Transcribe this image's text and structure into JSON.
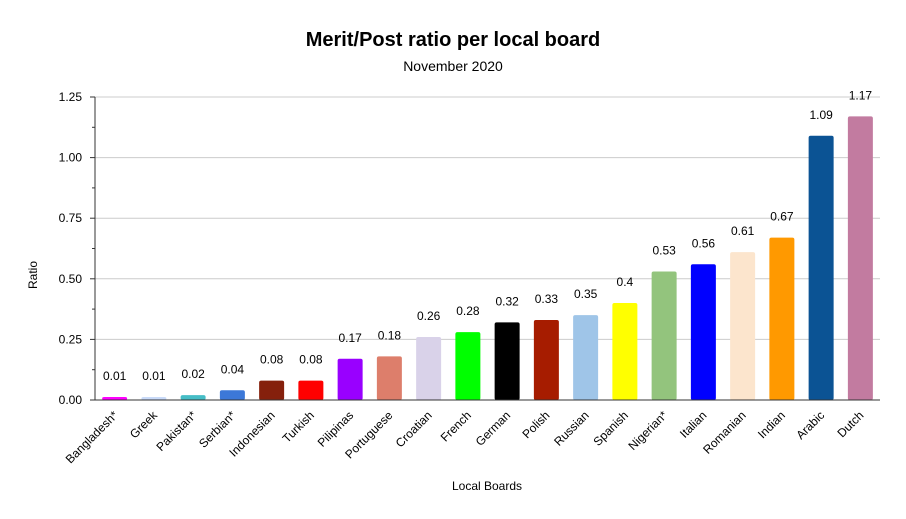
{
  "chart_data": {
    "type": "bar",
    "title": "Merit/Post ratio per local board",
    "subtitle": "November 2020",
    "xlabel": "Local Boards",
    "ylabel": "Ratio",
    "ylim": [
      0,
      1.25
    ],
    "yticks": [
      "0.00",
      "0.25",
      "0.50",
      "0.75",
      "1.00",
      "1.25"
    ],
    "grid": true,
    "legend": "none",
    "categories": [
      "Bangladesh*",
      "Greek",
      "Pakistan*",
      "Serbian*",
      "Indonesian",
      "Turkish",
      "Pilipinas",
      "Portuguese",
      "Croatian",
      "French",
      "German",
      "Polish",
      "Russian",
      "Spanish",
      "Nigerian*",
      "Italian",
      "Romanian",
      "Indian",
      "Arabic",
      "Dutch"
    ],
    "values": [
      0.01,
      0.01,
      0.02,
      0.04,
      0.08,
      0.08,
      0.17,
      0.18,
      0.26,
      0.28,
      0.32,
      0.33,
      0.35,
      0.4,
      0.53,
      0.56,
      0.61,
      0.67,
      1.09,
      1.17
    ],
    "value_labels": [
      "0.01",
      "0.01",
      "0.02",
      "0.04",
      "0.08",
      "0.08",
      "0.17",
      "0.18",
      "0.26",
      "0.28",
      "0.32",
      "0.33",
      "0.35",
      "0.4",
      "0.53",
      "0.56",
      "0.61",
      "0.67",
      "1.09",
      "1.17"
    ],
    "colors": [
      "#ff00ff",
      "#c9daf8",
      "#46bdc6",
      "#3c78d8",
      "#85200c",
      "#ff0000",
      "#9900ff",
      "#dd7e6b",
      "#d9d2e9",
      "#00ff00",
      "#000000",
      "#a61c00",
      "#9fc5e8",
      "#ffff00",
      "#93c47d",
      "#0000ff",
      "#fce5cd",
      "#ff9900",
      "#0b5394",
      "#c27ba0"
    ]
  }
}
